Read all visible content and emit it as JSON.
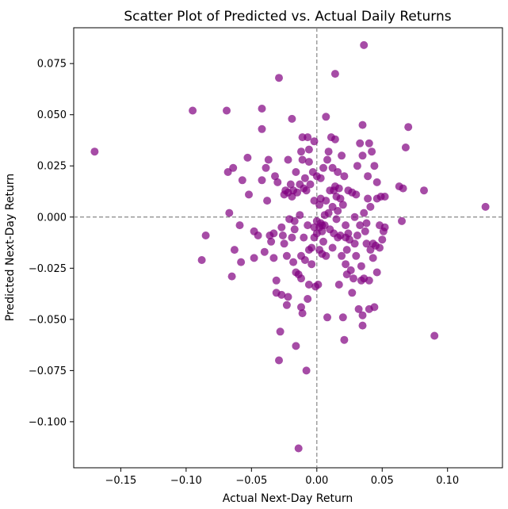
{
  "chart_data": {
    "type": "scatter",
    "title": "Scatter Plot of Predicted vs. Actual Daily Returns",
    "xlabel": "Actual Next-Day Return",
    "ylabel": "Predicted Next-Day Return",
    "xlim": [
      -0.186,
      0.142
    ],
    "ylim": [
      -0.1225,
      0.0925
    ],
    "xticks": [
      -0.15,
      -0.1,
      -0.05,
      0.0,
      0.05,
      0.1
    ],
    "xtick_labels": [
      "−0.15",
      "−0.10",
      "−0.05",
      "0.00",
      "0.05",
      "0.10"
    ],
    "yticks": [
      0.075,
      0.05,
      0.025,
      0.0,
      -0.025,
      -0.05,
      -0.075,
      -0.1
    ],
    "ytick_labels": [
      "0.075",
      "0.050",
      "0.025",
      "0.000",
      "−0.025",
      "−0.050",
      "−0.075",
      "−0.100"
    ],
    "reference_lines": {
      "x": 0,
      "y": 0,
      "style": "dashed",
      "color": "#888888"
    },
    "grid": false,
    "marker_color": "#800080",
    "marker_alpha": 0.7,
    "points": [
      [
        -0.17,
        0.032
      ],
      [
        -0.095,
        0.052
      ],
      [
        -0.088,
        -0.021
      ],
      [
        -0.085,
        -0.009
      ],
      [
        -0.069,
        0.052
      ],
      [
        -0.068,
        0.022
      ],
      [
        -0.067,
        0.002
      ],
      [
        -0.065,
        -0.029
      ],
      [
        -0.064,
        0.024
      ],
      [
        -0.063,
        -0.016
      ],
      [
        -0.059,
        -0.004
      ],
      [
        -0.058,
        -0.022
      ],
      [
        -0.057,
        0.018
      ],
      [
        -0.053,
        0.029
      ],
      [
        -0.052,
        0.011
      ],
      [
        -0.048,
        -0.007
      ],
      [
        -0.048,
        -0.02
      ],
      [
        -0.045,
        -0.009
      ],
      [
        -0.042,
        0.053
      ],
      [
        -0.042,
        0.043
      ],
      [
        -0.042,
        0.018
      ],
      [
        -0.04,
        -0.017
      ],
      [
        -0.039,
        0.024
      ],
      [
        -0.038,
        0.008
      ],
      [
        -0.037,
        0.028
      ],
      [
        -0.036,
        -0.009
      ],
      [
        -0.035,
        -0.012
      ],
      [
        -0.033,
        -0.008
      ],
      [
        -0.033,
        -0.02
      ],
      [
        -0.032,
        0.02
      ],
      [
        -0.031,
        -0.031
      ],
      [
        -0.031,
        -0.037
      ],
      [
        -0.03,
        0.017
      ],
      [
        -0.029,
        0.068
      ],
      [
        -0.029,
        -0.07
      ],
      [
        -0.028,
        -0.056
      ],
      [
        -0.027,
        -0.038
      ],
      [
        -0.027,
        -0.005
      ],
      [
        -0.026,
        -0.009
      ],
      [
        -0.025,
        0.011
      ],
      [
        -0.025,
        -0.013
      ],
      [
        -0.024,
        0.013
      ],
      [
        -0.023,
        -0.019
      ],
      [
        -0.023,
        -0.043
      ],
      [
        -0.022,
        0.028
      ],
      [
        -0.022,
        0.012
      ],
      [
        -0.022,
        -0.039
      ],
      [
        -0.021,
        -0.001
      ],
      [
        -0.02,
        0.016
      ],
      [
        -0.019,
        0.01
      ],
      [
        -0.019,
        0.048
      ],
      [
        -0.019,
        -0.01
      ],
      [
        -0.018,
        0.013
      ],
      [
        -0.018,
        -0.022
      ],
      [
        -0.017,
        -0.002
      ],
      [
        -0.017,
        -0.006
      ],
      [
        -0.016,
        0.022
      ],
      [
        -0.016,
        -0.027
      ],
      [
        -0.016,
        -0.063
      ],
      [
        -0.015,
        0.012
      ],
      [
        -0.014,
        -0.028
      ],
      [
        -0.014,
        -0.113
      ],
      [
        -0.013,
        0.001
      ],
      [
        -0.013,
        0.016
      ],
      [
        -0.012,
        0.032
      ],
      [
        -0.012,
        -0.019
      ],
      [
        -0.012,
        -0.03
      ],
      [
        -0.012,
        -0.044
      ],
      [
        -0.011,
        0.039
      ],
      [
        -0.011,
        0.028
      ],
      [
        -0.011,
        -0.047
      ],
      [
        -0.01,
        0.014
      ],
      [
        -0.01,
        -0.01
      ],
      [
        -0.009,
        0.019
      ],
      [
        -0.009,
        -0.021
      ],
      [
        -0.008,
        0.013
      ],
      [
        -0.008,
        -0.075
      ],
      [
        -0.007,
        0.039
      ],
      [
        -0.007,
        -0.004
      ],
      [
        -0.007,
        -0.04
      ],
      [
        -0.006,
        0.033
      ],
      [
        -0.006,
        0.027
      ],
      [
        -0.006,
        -0.016
      ],
      [
        -0.006,
        -0.033
      ],
      [
        -0.005,
        0.016
      ],
      [
        -0.004,
        -0.015
      ],
      [
        -0.004,
        -0.023
      ],
      [
        -0.003,
        0.022
      ],
      [
        -0.002,
        0.037
      ],
      [
        -0.002,
        0.008
      ],
      [
        -0.002,
        -0.005
      ],
      [
        -0.002,
        -0.01
      ],
      [
        -0.001,
        -0.034
      ],
      [
        0.0,
        0.02
      ],
      [
        0.0,
        -0.002
      ],
      [
        0.0,
        -0.008
      ],
      [
        0.001,
        -0.033
      ],
      [
        0.002,
        0.006
      ],
      [
        0.002,
        -0.005
      ],
      [
        0.002,
        -0.016
      ],
      [
        0.003,
        0.019
      ],
      [
        0.003,
        0.009
      ],
      [
        0.003,
        -0.003
      ],
      [
        0.004,
        -0.004
      ],
      [
        0.004,
        -0.007
      ],
      [
        0.004,
        -0.018
      ],
      [
        0.005,
        0.024
      ],
      [
        0.005,
        -0.012
      ],
      [
        0.006,
        0.001
      ],
      [
        0.006,
        -0.004
      ],
      [
        0.007,
        0.049
      ],
      [
        0.007,
        0.008
      ],
      [
        0.007,
        -0.019
      ],
      [
        0.008,
        0.028
      ],
      [
        0.008,
        -0.049
      ],
      [
        0.009,
        0.032
      ],
      [
        0.009,
        0.002
      ],
      [
        0.01,
        0.013
      ],
      [
        0.01,
        -0.006
      ],
      [
        0.011,
        0.039
      ],
      [
        0.012,
        0.024
      ],
      [
        0.012,
        0.005
      ],
      [
        0.012,
        -0.015
      ],
      [
        0.013,
        0.013
      ],
      [
        0.013,
        -0.008
      ],
      [
        0.014,
        0.015
      ],
      [
        0.014,
        0.07
      ],
      [
        0.014,
        0.038
      ],
      [
        0.015,
        0.01
      ],
      [
        0.015,
        -0.001
      ],
      [
        0.016,
        0.022
      ],
      [
        0.016,
        0.003
      ],
      [
        0.016,
        -0.01
      ],
      [
        0.017,
        0.014
      ],
      [
        0.017,
        -0.033
      ],
      [
        0.018,
        0.009
      ],
      [
        0.018,
        -0.009
      ],
      [
        0.019,
        0.03
      ],
      [
        0.019,
        -0.019
      ],
      [
        0.02,
        0.006
      ],
      [
        0.02,
        -0.049
      ],
      [
        0.021,
        -0.06
      ],
      [
        0.021,
        0.02
      ],
      [
        0.022,
        -0.004
      ],
      [
        0.022,
        -0.01
      ],
      [
        0.022,
        -0.023
      ],
      [
        0.023,
        -0.016
      ],
      [
        0.023,
        -0.028
      ],
      [
        0.024,
        0.013
      ],
      [
        0.024,
        -0.008
      ],
      [
        0.025,
        -0.011
      ],
      [
        0.026,
        -0.026
      ],
      [
        0.027,
        0.012
      ],
      [
        0.027,
        -0.037
      ],
      [
        0.028,
        -0.03
      ],
      [
        0.029,
        0.0
      ],
      [
        0.029,
        -0.013
      ],
      [
        0.03,
        0.011
      ],
      [
        0.03,
        -0.019
      ],
      [
        0.031,
        0.025
      ],
      [
        0.031,
        -0.009
      ],
      [
        0.032,
        -0.045
      ],
      [
        0.033,
        0.036
      ],
      [
        0.033,
        -0.004
      ],
      [
        0.034,
        -0.024
      ],
      [
        0.034,
        -0.031
      ],
      [
        0.035,
        0.045
      ],
      [
        0.035,
        0.03
      ],
      [
        0.035,
        -0.048
      ],
      [
        0.035,
        -0.053
      ],
      [
        0.036,
        0.084
      ],
      [
        0.036,
        0.002
      ],
      [
        0.036,
        -0.03
      ],
      [
        0.037,
        -0.007
      ],
      [
        0.038,
        -0.003
      ],
      [
        0.038,
        -0.013
      ],
      [
        0.039,
        0.02
      ],
      [
        0.039,
        0.009
      ],
      [
        0.04,
        0.036
      ],
      [
        0.04,
        -0.031
      ],
      [
        0.04,
        -0.045
      ],
      [
        0.041,
        -0.016
      ],
      [
        0.041,
        0.005
      ],
      [
        0.042,
        0.032
      ],
      [
        0.043,
        -0.013
      ],
      [
        0.043,
        -0.02
      ],
      [
        0.044,
        0.025
      ],
      [
        0.044,
        -0.044
      ],
      [
        0.045,
        -0.014
      ],
      [
        0.046,
        0.017
      ],
      [
        0.046,
        0.009
      ],
      [
        0.046,
        -0.027
      ],
      [
        0.048,
        -0.015
      ],
      [
        0.048,
        -0.004
      ],
      [
        0.049,
        0.01
      ],
      [
        0.05,
        -0.011
      ],
      [
        0.051,
        -0.007
      ],
      [
        0.052,
        -0.005
      ],
      [
        0.052,
        0.01
      ],
      [
        0.063,
        0.015
      ],
      [
        0.065,
        -0.002
      ],
      [
        0.066,
        0.014
      ],
      [
        0.068,
        0.034
      ],
      [
        0.07,
        0.044
      ],
      [
        0.082,
        0.013
      ],
      [
        0.09,
        -0.058
      ],
      [
        0.129,
        0.005
      ]
    ]
  }
}
